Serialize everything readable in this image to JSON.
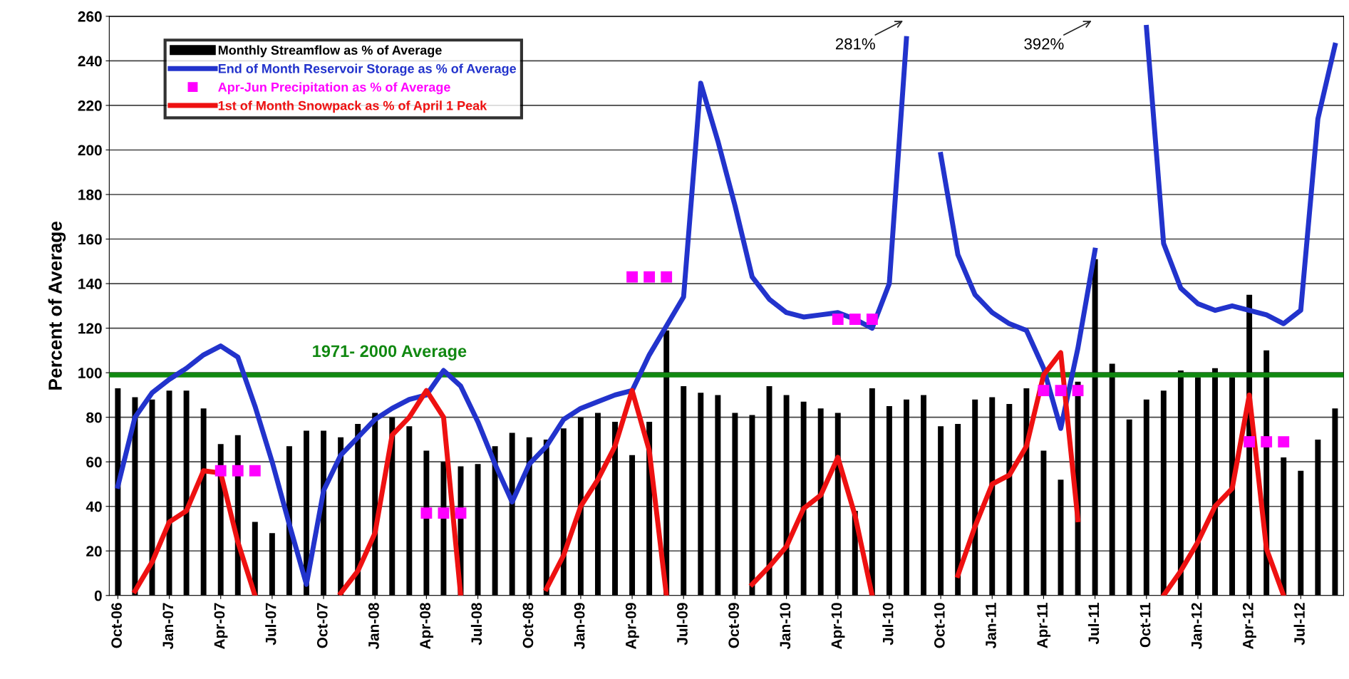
{
  "chart_data": {
    "type": "bar",
    "ylabel": "Percent of Average",
    "categories": [
      "Oct-06",
      null,
      null,
      "Jan-07",
      null,
      null,
      "Apr-07",
      null,
      null,
      "Jul-07",
      null,
      null,
      "Oct-07",
      null,
      null,
      "Jan-08",
      null,
      null,
      "Apr-08",
      null,
      null,
      "Jul-08",
      null,
      null,
      "Oct-08",
      null,
      null,
      "Jan-09",
      null,
      null,
      "Apr-09",
      null,
      null,
      "Jul-09",
      null,
      null,
      "Oct-09",
      null,
      null,
      "Jan-10",
      null,
      null,
      "Apr-10",
      null,
      null,
      "Jul-10",
      null,
      null,
      "Oct-10",
      null,
      null,
      "Jan-11",
      null,
      null,
      "Apr-11",
      null,
      null,
      "Jul-11",
      null,
      null,
      "Oct-11",
      null,
      null,
      "Jan-12",
      null,
      null,
      "Apr-12",
      null,
      null,
      "Jul-12",
      null,
      null
    ],
    "series": [
      {
        "name": "Monthly Streamflow as % of Average",
        "color": "#000000",
        "values": [
          93,
          89,
          88,
          92,
          92,
          84,
          68,
          72,
          33,
          28,
          67,
          74,
          74,
          71,
          77,
          82,
          80,
          76,
          65,
          60,
          58,
          59,
          67,
          73,
          71,
          70,
          75,
          80,
          82,
          78,
          63,
          78,
          119,
          94,
          91,
          90,
          82,
          81,
          94,
          90,
          87,
          84,
          82,
          38,
          93,
          85,
          88,
          90,
          76,
          77,
          88,
          89,
          86,
          93,
          65,
          52,
          96,
          151,
          104,
          79,
          88,
          92,
          101,
          98,
          102,
          98,
          135,
          110,
          62,
          56,
          70,
          84
        ]
      },
      {
        "name": "End of Month Reservoir Storage as % of Average",
        "type": "line",
        "color": "#2233cc",
        "values": [
          49,
          80,
          91,
          97,
          102,
          108,
          112,
          107,
          85,
          60,
          32,
          5,
          47,
          63,
          71,
          79,
          84,
          88,
          90,
          101,
          94,
          78,
          59,
          42,
          59,
          67,
          79,
          84,
          87,
          90,
          92,
          108,
          121,
          134,
          230,
          204,
          175,
          143,
          133,
          127,
          125,
          126,
          127,
          124,
          120,
          140,
          250,
          null,
          198,
          153,
          135,
          127,
          122,
          119,
          102,
          75,
          111,
          155,
          null,
          null,
          255,
          158,
          138,
          131,
          128,
          130,
          128,
          126,
          122,
          128,
          214,
          247
        ]
      },
      {
        "name": "Apr-Jun Precipitation as % of Average",
        "type": "scatter",
        "marker": "square",
        "color": "#ff00ff",
        "values": [
          null,
          null,
          null,
          null,
          null,
          null,
          56,
          56,
          56,
          null,
          null,
          null,
          null,
          null,
          null,
          null,
          null,
          null,
          37,
          37,
          37,
          null,
          null,
          null,
          null,
          null,
          null,
          null,
          null,
          null,
          143,
          143,
          143,
          null,
          null,
          null,
          null,
          null,
          null,
          null,
          null,
          null,
          124,
          124,
          124,
          null,
          null,
          null,
          null,
          null,
          null,
          null,
          null,
          null,
          92,
          92,
          92,
          null,
          null,
          null,
          null,
          null,
          null,
          null,
          null,
          null,
          69,
          69,
          69,
          null,
          null,
          null
        ]
      },
      {
        "name": "1st of Month Snowpack as % of April 1 Peak",
        "type": "line",
        "color": "#ee1111",
        "values": [
          null,
          2,
          15,
          33,
          38,
          56,
          55,
          24,
          0,
          null,
          null,
          null,
          null,
          1,
          11,
          28,
          72,
          80,
          92,
          80,
          0,
          null,
          null,
          null,
          null,
          3,
          18,
          40,
          52,
          67,
          92,
          65,
          0,
          null,
          null,
          null,
          null,
          5,
          13,
          22,
          39,
          45,
          62,
          36,
          0,
          null,
          null,
          null,
          null,
          9,
          31,
          50,
          54,
          67,
          99,
          109,
          34,
          null,
          null,
          null,
          null,
          0,
          11,
          24,
          40,
          48,
          90,
          21,
          0,
          null,
          null,
          null
        ]
      }
    ],
    "ylim": [
      0,
      260
    ],
    "yticks": [
      0,
      20,
      40,
      60,
      80,
      100,
      120,
      140,
      160,
      180,
      200,
      220,
      240,
      260
    ],
    "grid": "y",
    "legend": "top left",
    "ref_lines": [
      {
        "axis": "y",
        "value": 99,
        "label": "1971- 2000 Average",
        "color": "#118811"
      }
    ],
    "annotations": [
      "281%",
      "392%"
    ]
  }
}
